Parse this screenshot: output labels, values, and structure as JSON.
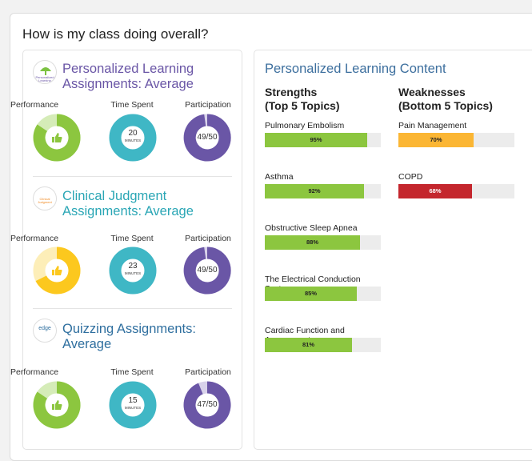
{
  "page": {
    "title": "How is my class doing overall?"
  },
  "colors": {
    "green": "#8cc63f",
    "yellow": "#fcc81e",
    "purple": "#6a56a6",
    "teal": "#3fb7c5",
    "amber": "#fbb634",
    "red": "#c4262d",
    "heading_blue": "#3d6f9e"
  },
  "metric_labels": {
    "performance": "Performance",
    "time_spent": "Time Spent",
    "participation": "Participation"
  },
  "sections": [
    {
      "logo_text": "Personalized Learning",
      "title_line1": "Personalized Learning",
      "title_line2": "Assignments: Average",
      "title_color": "#6a56a6",
      "performance_icon": "thumbs-up-icon",
      "time_spent": {
        "value": "20",
        "unit": "MINUTES"
      },
      "participation": {
        "text": "49/50",
        "fraction": 0.98
      }
    },
    {
      "logo_text": "Clinical Judgment",
      "title_line1": "Clinical Judgment",
      "title_line2": "Assignments: Average",
      "title_color": "#2aa6b5",
      "performance_icon": "thumbs-up-icon",
      "time_spent": {
        "value": "23",
        "unit": "MINUTES"
      },
      "participation": {
        "text": "49/50",
        "fraction": 0.98
      }
    },
    {
      "logo_text": "edge",
      "title_line1": "Quizzing Assignments:",
      "title_line2": "Average",
      "title_color": "#2f6f9f",
      "performance_icon": "thumbs-up-icon",
      "time_spent": {
        "value": "15",
        "unit": "MINUTES"
      },
      "participation": {
        "text": "47/50",
        "fraction": 0.94
      }
    }
  ],
  "content": {
    "title": "Personalized Learning Content",
    "strengths": {
      "heading1": "Strengths",
      "heading2": "(Top 5 Topics)",
      "items": [
        {
          "name": "Pulmonary Embolism",
          "percent": 95,
          "label": "95%"
        },
        {
          "name": "Asthma",
          "percent": 92,
          "label": "92%"
        },
        {
          "name": "Obstructive Sleep Apnea",
          "percent": 88,
          "label": "88%"
        },
        {
          "name": "The Electrical Conduction System",
          "percent": 85,
          "label": "85%"
        },
        {
          "name": "Cardiac Function and Assessment",
          "percent": 81,
          "label": "81%"
        }
      ]
    },
    "weaknesses": {
      "heading1": "Weaknesses",
      "heading2": "(Bottom 5 Topics)",
      "items": [
        {
          "name": "Pain Management",
          "percent": 70,
          "label": "70%",
          "color": "#fbb634"
        },
        {
          "name": "COPD",
          "percent": 68,
          "label": "68%",
          "color": "#c4262d"
        }
      ]
    }
  }
}
